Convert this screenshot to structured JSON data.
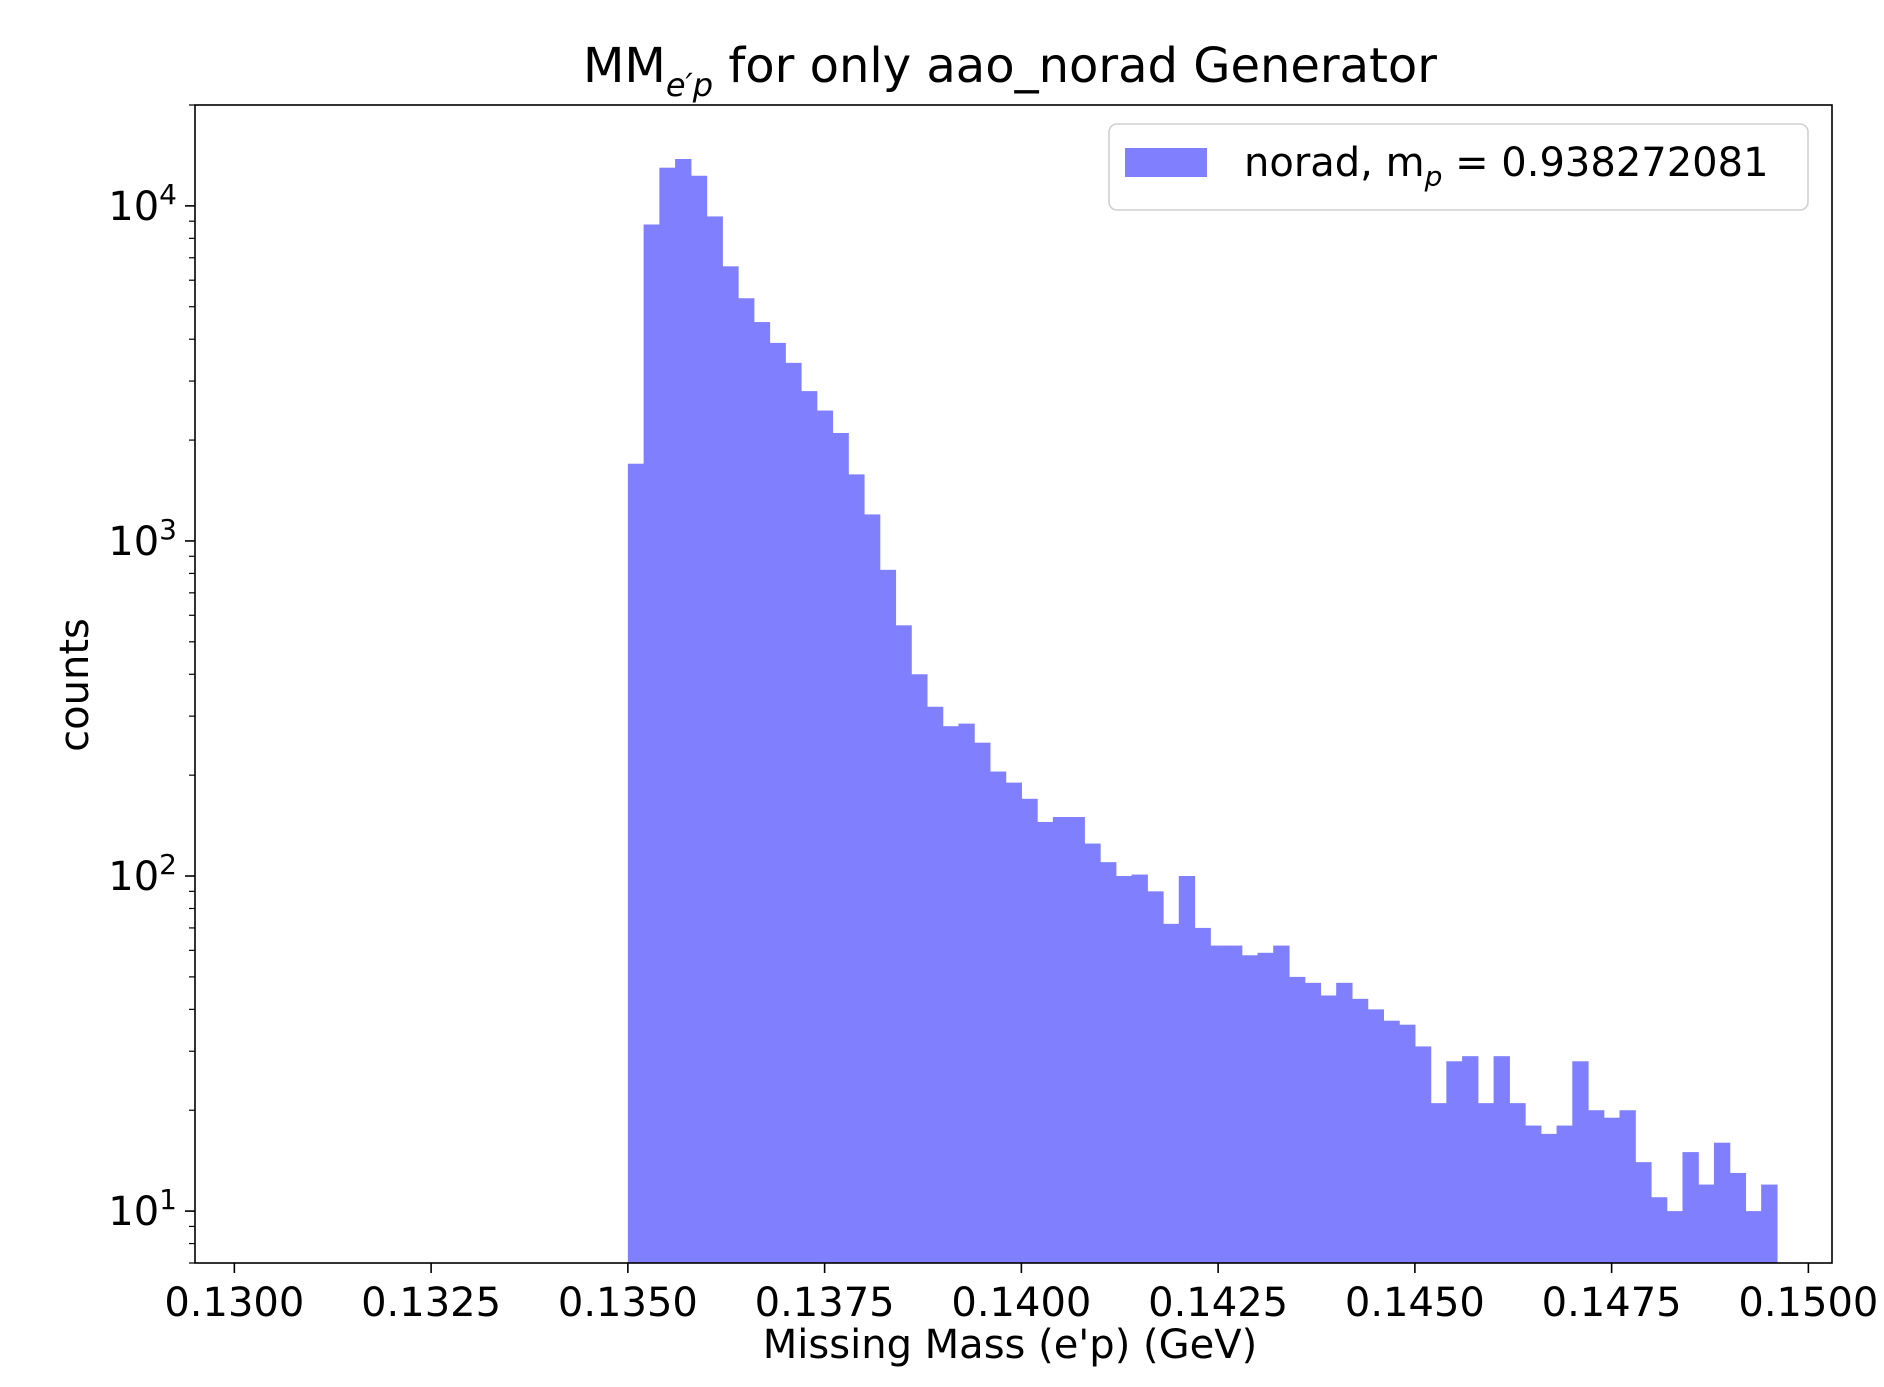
{
  "chart_data": {
    "type": "bar",
    "title": {
      "main": "MM",
      "sub": "e′p",
      "rest": " for only aao_norad Generator"
    },
    "xlabel": "Missing Mass (e'p) (GeV)",
    "ylabel": "counts",
    "xlim": [
      0.1295,
      0.1503
    ],
    "ylim": [
      7,
      20000
    ],
    "yscale": "log",
    "xticks": [
      0.13,
      0.1325,
      0.135,
      0.1375,
      0.14,
      0.1425,
      0.145,
      0.1475,
      0.15
    ],
    "xtick_labels": [
      "0.1300",
      "0.1325",
      "0.1350",
      "0.1375",
      "0.1400",
      "0.1425",
      "0.1450",
      "0.1475",
      "0.1500"
    ],
    "yticks": [
      {
        "value": 10,
        "base": "10",
        "exp": "1"
      },
      {
        "value": 100,
        "base": "10",
        "exp": "2"
      },
      {
        "value": 1000,
        "base": "10",
        "exp": "3"
      },
      {
        "value": 10000,
        "base": "10",
        "exp": "4"
      }
    ],
    "grid": false,
    "legend": {
      "placement": "top-right",
      "label_main": "norad, m",
      "label_sub": "p",
      "label_rest": " = 0.938272081"
    },
    "series": [
      {
        "name": "norad, mp = 0.938272081",
        "color": "#8080ff",
        "bin_start": 0.135,
        "bin_width": 0.0002,
        "values": [
          1700,
          8800,
          13000,
          13800,
          12300,
          9300,
          6600,
          5300,
          4500,
          3900,
          3400,
          2800,
          2450,
          2100,
          1580,
          1200,
          820,
          560,
          400,
          320,
          280,
          285,
          250,
          205,
          190,
          170,
          145,
          150,
          150,
          125,
          110,
          100,
          101,
          90,
          72,
          100,
          70,
          62,
          62,
          58,
          59,
          62,
          50,
          48,
          44,
          48,
          43,
          40,
          37,
          36,
          31,
          21,
          28,
          29,
          21,
          29,
          21,
          18,
          17,
          18,
          28,
          20,
          19,
          20,
          14,
          11,
          10,
          15,
          12,
          16,
          13,
          10,
          12
        ]
      }
    ]
  }
}
